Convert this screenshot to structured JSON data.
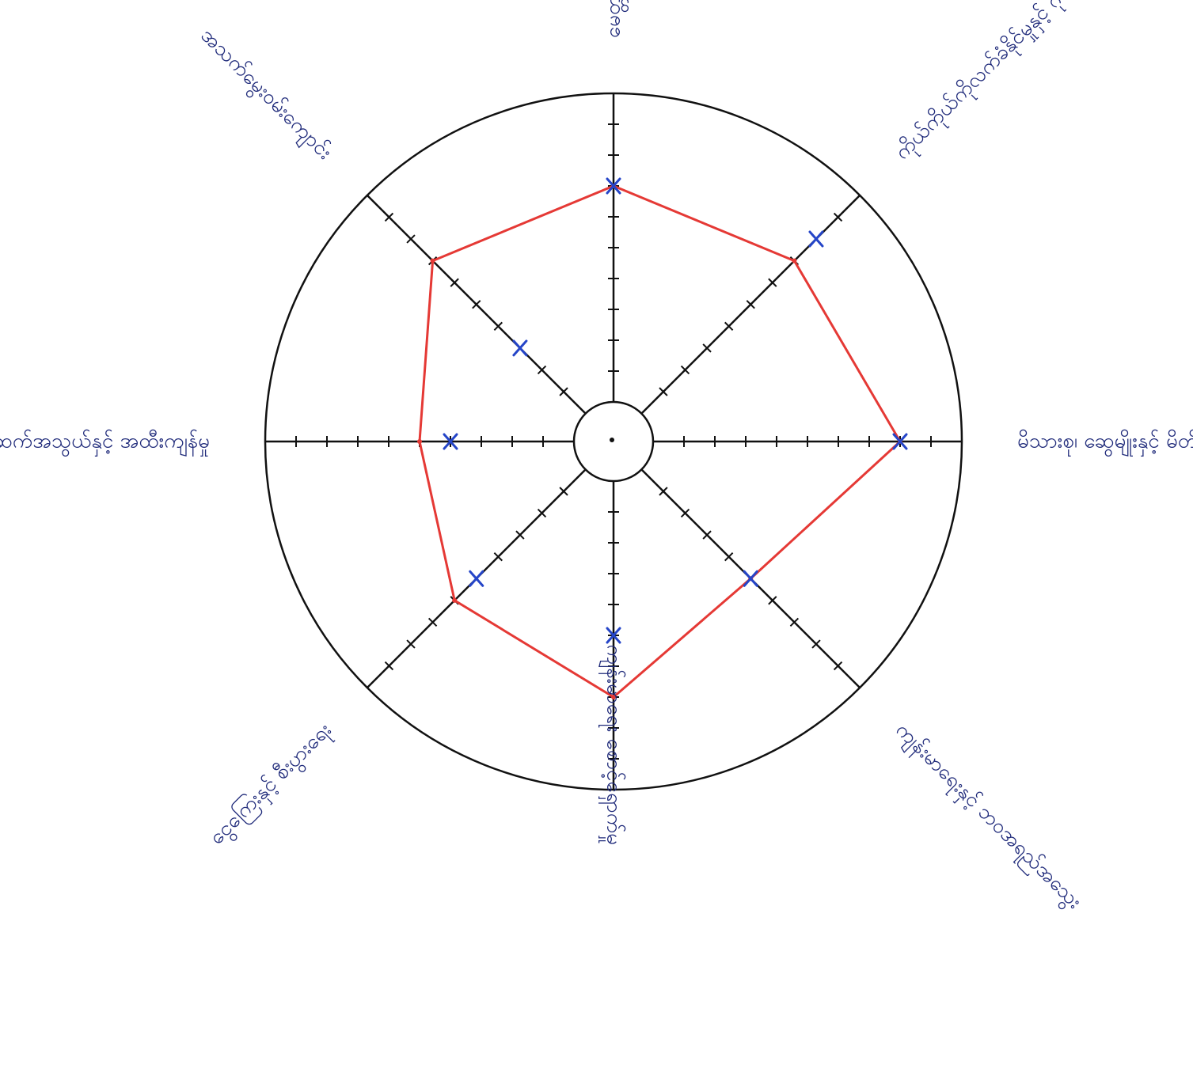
{
  "chart_data": {
    "type": "radar",
    "scale_max": 10,
    "grid": false,
    "colors": {
      "outline": "#111111",
      "label": "#1f2a7a",
      "series_1": "#e53935",
      "series_2": "#2545c8"
    },
    "axes": [
      {
        "label": "မေတ္တာ"
      },
      {
        "label": "ကိုယ်ကိုယ်ကိုလက်ခံနိုင်မှုနှင့် ဂုဏ်သိက္ခာ"
      },
      {
        "label": "မိသားစု၊ ဆွေမျိုးနှင့် မိတ်ဆွေ"
      },
      {
        "label": "ကျန်းမာရေးနှင့် ဘဝအရည်အသွေး"
      },
      {
        "label": "ကျန်းမာရေး စောင့်ရှောက်မှု"
      },
      {
        "label": "ငွေကြေးနှင့် စီးပွားရေး"
      },
      {
        "label": "လူမှုအဆက်အသွယ်နှင့် အထီးကျန်မှု"
      },
      {
        "label": "အသက်မွေးဝမ်းကျောင်း"
      }
    ],
    "series": [
      {
        "marker": "line",
        "values": [
          7,
          7,
          8,
          5,
          7,
          6,
          5,
          7
        ]
      },
      {
        "marker": "cross",
        "values": [
          7,
          8,
          8,
          5,
          5,
          5,
          4,
          3
        ]
      }
    ]
  }
}
